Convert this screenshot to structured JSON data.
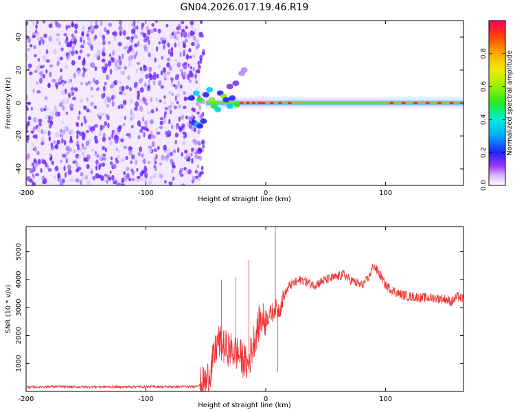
{
  "title": "GN04.2026.017.19.46.R19",
  "chart_data": [
    {
      "type": "heatmap",
      "name": "spectrogram",
      "xlabel": "Height of straight line (km)",
      "ylabel": "Frequency (Hz)",
      "xlim": [
        -200,
        165
      ],
      "ylim": [
        -50,
        50
      ],
      "xticks": [
        -200,
        -100,
        0,
        100
      ],
      "yticks": [
        -40,
        -20,
        0,
        20,
        40
      ],
      "colorbar": {
        "label": "Normalized spectral amplitude",
        "ticks": [
          0.0,
          0.2,
          0.4,
          0.6,
          0.8
        ],
        "range": [
          0,
          1
        ]
      },
      "features": {
        "noise_region_x": [
          -200,
          -55
        ],
        "carrier_line_x": [
          -55,
          165
        ],
        "carrier_frequency": 0
      }
    },
    {
      "type": "line",
      "name": "snr",
      "xlabel": "Height of straight line (km)",
      "ylabel": "SNR (10 * v/v)",
      "xlim": [
        -200,
        165
      ],
      "ylim": [
        0,
        5900
      ],
      "xticks": [
        -200,
        -100,
        0,
        100
      ],
      "yticks": [
        1000,
        2000,
        3000,
        4000,
        5000
      ],
      "color": "#ee3333",
      "x": [
        -200,
        -180,
        -160,
        -140,
        -120,
        -100,
        -80,
        -60,
        -50,
        -45,
        -40,
        -35,
        -30,
        -25,
        -20,
        -15,
        -10,
        -5,
        0,
        5,
        8,
        10,
        12,
        15,
        20,
        25,
        30,
        40,
        50,
        60,
        65,
        70,
        80,
        85,
        90,
        95,
        100,
        110,
        120,
        130,
        140,
        150,
        155,
        160,
        165
      ],
      "y": [
        150,
        170,
        160,
        165,
        160,
        170,
        165,
        170,
        300,
        900,
        1800,
        1600,
        1500,
        1400,
        1200,
        900,
        1800,
        2500,
        2600,
        2800,
        3000,
        2900,
        3000,
        3400,
        3800,
        3900,
        4000,
        3800,
        4000,
        4100,
        4200,
        4000,
        3800,
        4000,
        4500,
        4200,
        3800,
        3500,
        3400,
        3350,
        3350,
        3300,
        3200,
        3400,
        3300
      ],
      "spikes": [
        {
          "x": -37,
          "y": 4000
        },
        {
          "x": -25,
          "y": 4100
        },
        {
          "x": -14,
          "y": 4700
        },
        {
          "x": 8,
          "y": 5900
        },
        {
          "x": 10,
          "y": 700
        }
      ]
    }
  ]
}
